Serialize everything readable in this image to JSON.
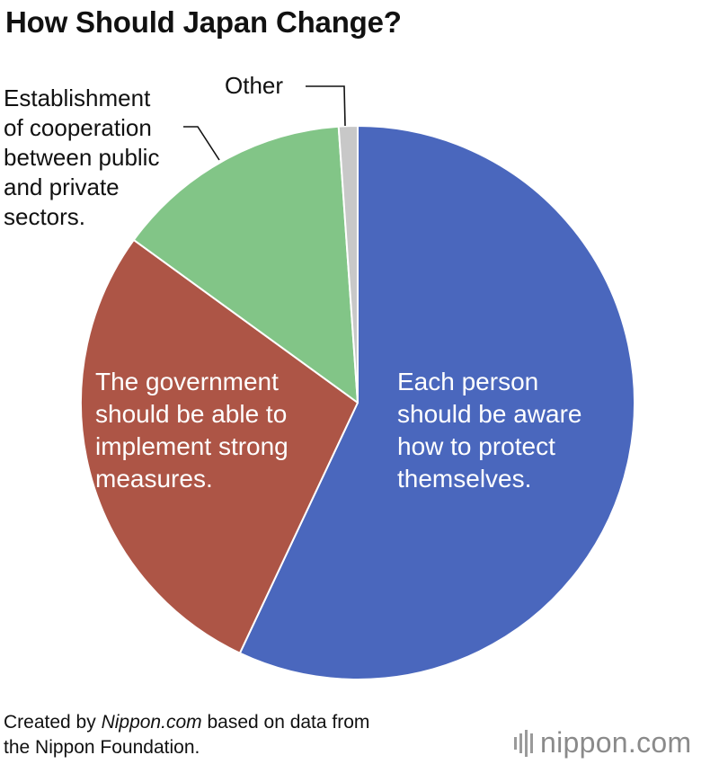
{
  "title": "How Should Japan Change?",
  "chart_data": {
    "type": "pie",
    "title": "How Should Japan Change?",
    "start_angle_deg": 0,
    "direction": "clockwise",
    "slices": [
      {
        "label_lines": [
          "Each person",
          "should be aware",
          "how to protect",
          "themselves."
        ],
        "value": 57.0,
        "color": "#4a67bd",
        "label_color": "#ffffff",
        "label_inside": true
      },
      {
        "label_lines": [
          "The government",
          "should be able to",
          "implement strong",
          "measures."
        ],
        "value": 28.0,
        "color": "#ad5546",
        "label_color": "#ffffff",
        "label_inside": true
      },
      {
        "label_lines": [
          "Establishment",
          "of cooperation",
          "between public",
          "and private",
          "sectors."
        ],
        "value": 13.9,
        "color": "#82c587",
        "label_color": "#111111",
        "label_inside": false
      },
      {
        "label_lines": [
          "Other"
        ],
        "value": 1.1,
        "color": "#c8c8c8",
        "label_color": "#111111",
        "label_inside": false
      }
    ]
  },
  "footer": {
    "line1_prefix": "Created by ",
    "line1_italic": "Nippon.com",
    "line1_suffix": " based on data from",
    "line2": "the Nippon Foundation."
  },
  "logo": {
    "name": "nippon",
    "dot": ".",
    "tld": "com",
    "bar_icon": "sound-bars-icon"
  }
}
